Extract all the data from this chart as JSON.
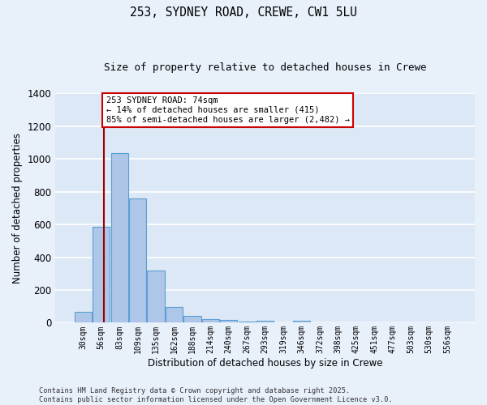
{
  "title1": "253, SYDNEY ROAD, CREWE, CW1 5LU",
  "title2": "Size of property relative to detached houses in Crewe",
  "xlabel": "Distribution of detached houses by size in Crewe",
  "ylabel": "Number of detached properties",
  "bar_labels": [
    "30sqm",
    "56sqm",
    "83sqm",
    "109sqm",
    "135sqm",
    "162sqm",
    "188sqm",
    "214sqm",
    "240sqm",
    "267sqm",
    "293sqm",
    "319sqm",
    "346sqm",
    "372sqm",
    "398sqm",
    "425sqm",
    "451sqm",
    "477sqm",
    "503sqm",
    "530sqm",
    "556sqm"
  ],
  "bar_values": [
    65,
    585,
    1035,
    760,
    320,
    95,
    42,
    22,
    15,
    8,
    12,
    0,
    12,
    0,
    0,
    0,
    0,
    0,
    0,
    0,
    0
  ],
  "bar_color": "#aec6e8",
  "bar_edge_color": "#5a9fd4",
  "bg_color": "#dce8f5",
  "fig_bg_color": "#e8f0fa",
  "grid_color": "#ffffff",
  "vline_color": "#990000",
  "annotation_text": "253 SYDNEY ROAD: 74sqm\n← 14% of detached houses are smaller (415)\n85% of semi-detached houses are larger (2,482) →",
  "annotation_box_color": "#ffffff",
  "annotation_box_edge": "#cc0000",
  "ylim": [
    0,
    1400
  ],
  "yticks": [
    0,
    200,
    400,
    600,
    800,
    1000,
    1200,
    1400
  ],
  "footer": "Contains HM Land Registry data © Crown copyright and database right 2025.\nContains public sector information licensed under the Open Government Licence v3.0."
}
